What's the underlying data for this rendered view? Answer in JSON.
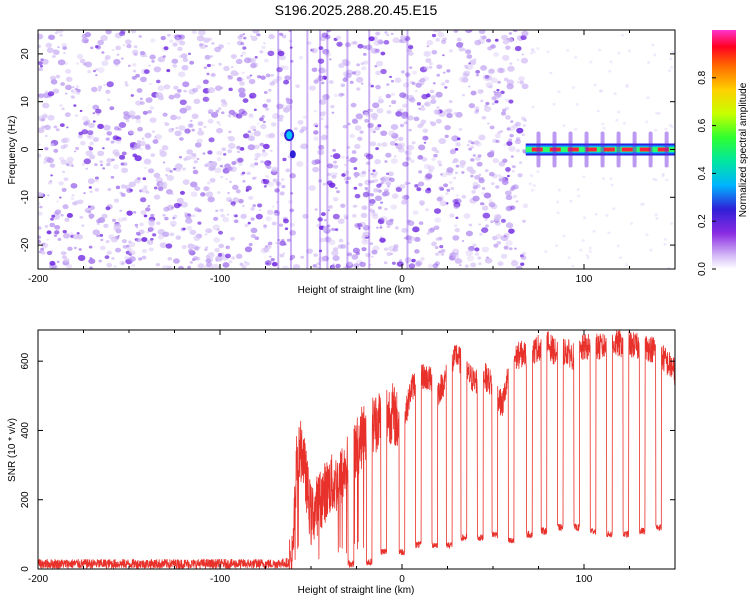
{
  "title": "S196.2025.288.20.45.E15",
  "colors": {
    "axis": "#000000",
    "snr_line": "#e8312b",
    "speckle_light": "#d7c4f5",
    "speckle_mid": "#b48ff0",
    "speckle_dark": "#6a1fe0",
    "background": "#ffffff"
  },
  "spectrogram": {
    "xlabel": "Height of straight line (km)",
    "ylabel": "Frequency (Hz)",
    "xlim": [
      -200,
      150
    ],
    "ylim": [
      -25,
      25
    ],
    "xticks": [
      -200,
      -100,
      0,
      100
    ],
    "xtick_labels": [
      "-200",
      "-100",
      "0",
      "100"
    ],
    "yticks": [
      -20,
      -10,
      0,
      10,
      20
    ],
    "ytick_labels": [
      "-20",
      "-10",
      "0",
      "10",
      "20"
    ],
    "colorbar": {
      "label": "Normalized spectral amplitude",
      "range": [
        0,
        1
      ],
      "ticks": [
        0.0,
        0.2,
        0.4,
        0.6,
        0.8
      ],
      "tick_labels": [
        "0.0",
        "0.2",
        "0.4",
        "0.6",
        "0.8"
      ]
    }
  },
  "snr_panel": {
    "xlabel": "Height of straight line (km)",
    "ylabel": "SNR (10 * v/v)",
    "xlim": [
      -200,
      150
    ],
    "ylim": [
      0,
      690
    ],
    "xticks": [
      -200,
      -100,
      0,
      100
    ],
    "xtick_labels": [
      "-200",
      "-100",
      "0",
      "100"
    ],
    "yticks": [
      0,
      200,
      400,
      600
    ],
    "ytick_labels": [
      "0",
      "200",
      "400",
      "600"
    ]
  },
  "chart_data": [
    {
      "type": "heatmap",
      "title": "S196.2025.288.20.45.E15",
      "xlabel": "Height of straight line (km)",
      "ylabel": "Frequency (Hz)",
      "xlim": [
        -200,
        150
      ],
      "ylim": [
        -25,
        25
      ],
      "colorbar_label": "Normalized spectral amplitude",
      "colorbar_range": [
        0,
        1
      ],
      "features": {
        "noise_region_x": [
          -200,
          68
        ],
        "signal_start_x": 68,
        "carrier_frequency_hz": 0,
        "carrier_amplitude": 0.95,
        "strong_blob": {
          "x": -62,
          "y": 3,
          "amplitude": 0.3
        }
      }
    },
    {
      "type": "line",
      "xlabel": "Height of straight line (km)",
      "ylabel": "SNR (10 * v/v)",
      "xlim": [
        -200,
        150
      ],
      "ylim": [
        0,
        690
      ],
      "series": [
        {
          "x": [
            -200,
            -150,
            -100,
            -70,
            -60,
            -58,
            -55,
            -50,
            -45,
            -40,
            -35,
            -30,
            -25,
            -20,
            -15,
            -10,
            -5,
            0,
            5,
            10,
            15,
            20,
            25,
            30,
            35,
            40,
            45,
            50,
            55,
            60,
            65,
            70,
            75,
            80,
            85,
            90,
            95,
            100,
            105,
            110,
            115,
            120,
            125,
            130,
            135,
            140,
            145,
            150
          ],
          "y": [
            15,
            15,
            15,
            15,
            20,
            300,
            350,
            150,
            200,
            240,
            250,
            300,
            350,
            400,
            420,
            450,
            450,
            400,
            520,
            560,
            550,
            510,
            560,
            620,
            570,
            540,
            560,
            530,
            470,
            600,
            620,
            620,
            640,
            650,
            620,
            630,
            610,
            640,
            640,
            640,
            650,
            650,
            650,
            640,
            640,
            630,
            600,
            570
          ],
          "dips": [
            -28,
            -18,
            -10,
            0,
            9,
            18,
            26,
            34,
            43,
            51,
            60,
            70,
            78,
            87,
            96,
            105,
            114,
            123,
            132,
            141
          ],
          "dip_floor": [
            5,
            10,
            40,
            40,
            60,
            60,
            60,
            80,
            80,
            90,
            70,
            90,
            100,
            110,
            110,
            100,
            90,
            90,
            100,
            110
          ]
        }
      ]
    }
  ]
}
